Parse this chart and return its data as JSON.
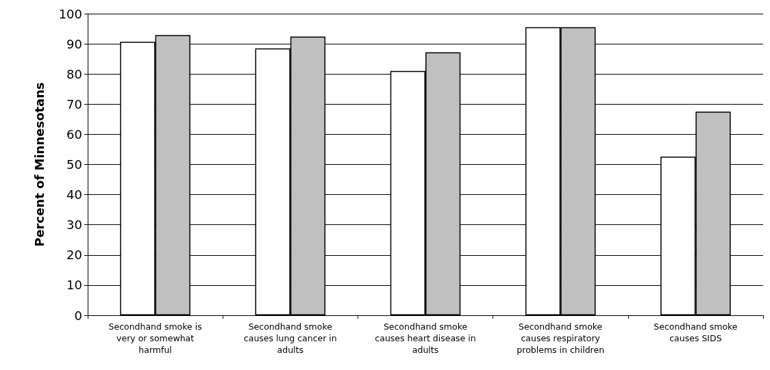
{
  "chart_data": {
    "type": "bar",
    "ylabel": "Percent of Minnesotans",
    "categories": [
      "Secondhand smoke is\nvery or somewhat\nharmful",
      "Secondhand smoke\ncauses lung cancer in\nadults",
      "Secondhand smoke\ncauses heart disease in\nadults",
      "Secondhand smoke\ncauses respiratory\nproblems in children",
      "Secondhand smoke\ncauses SIDS"
    ],
    "series": [
      {
        "color": "#ffffff",
        "values": [
          90.7,
          88.5,
          81.0,
          95.5,
          52.6
        ]
      },
      {
        "color": "#c0c0c0",
        "values": [
          92.9,
          92.4,
          87.2,
          95.5,
          67.5
        ]
      }
    ],
    "ylim": [
      0,
      100
    ],
    "yticks": [
      0,
      10,
      20,
      30,
      40,
      50,
      60,
      70,
      80,
      90,
      100
    ],
    "grid": "y"
  }
}
